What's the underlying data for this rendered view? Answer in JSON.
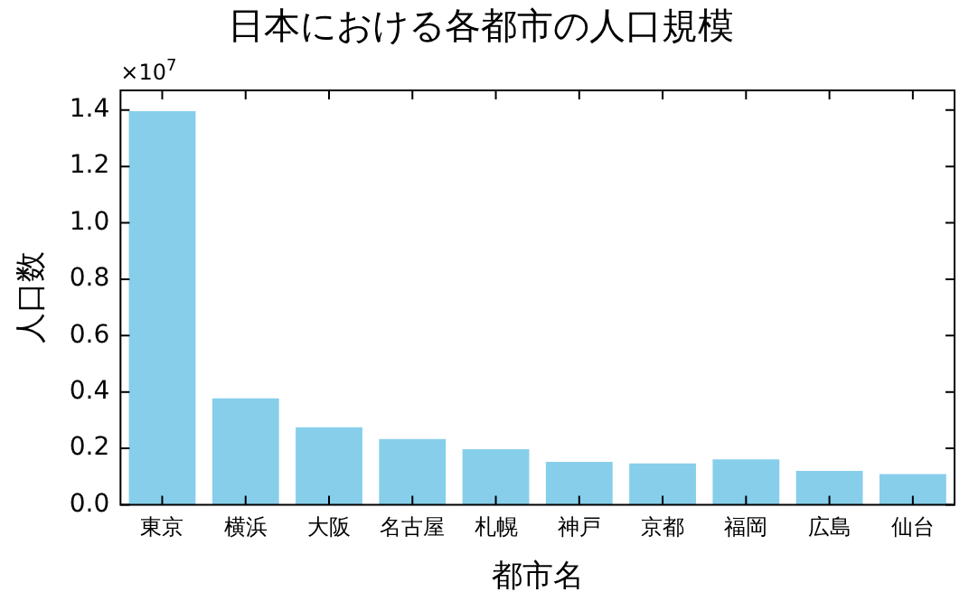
{
  "chart_data": {
    "type": "bar",
    "title": "日本における各都市の人口規模",
    "xlabel": "都市名",
    "ylabel": "人口数",
    "categories": [
      "東京",
      "横浜",
      "大阪",
      "名古屋",
      "札幌",
      "神戸",
      "京都",
      "福岡",
      "広島",
      "仙台"
    ],
    "values": [
      1.396,
      0.377,
      0.275,
      0.233,
      0.197,
      0.152,
      0.146,
      0.161,
      0.12,
      0.109
    ],
    "color": "#87ceeb",
    "ylim": [
      0,
      1.47
    ],
    "yticks": [
      {
        "value": 0,
        "label": "0.0"
      },
      0.2,
      0.4,
      0.6,
      0.8,
      {
        "value": 1,
        "label": "1.0"
      },
      1.2,
      1.4
    ],
    "annotations": [
      "×10$^{7}$"
    ],
    "grid": false,
    "legend": false
  }
}
